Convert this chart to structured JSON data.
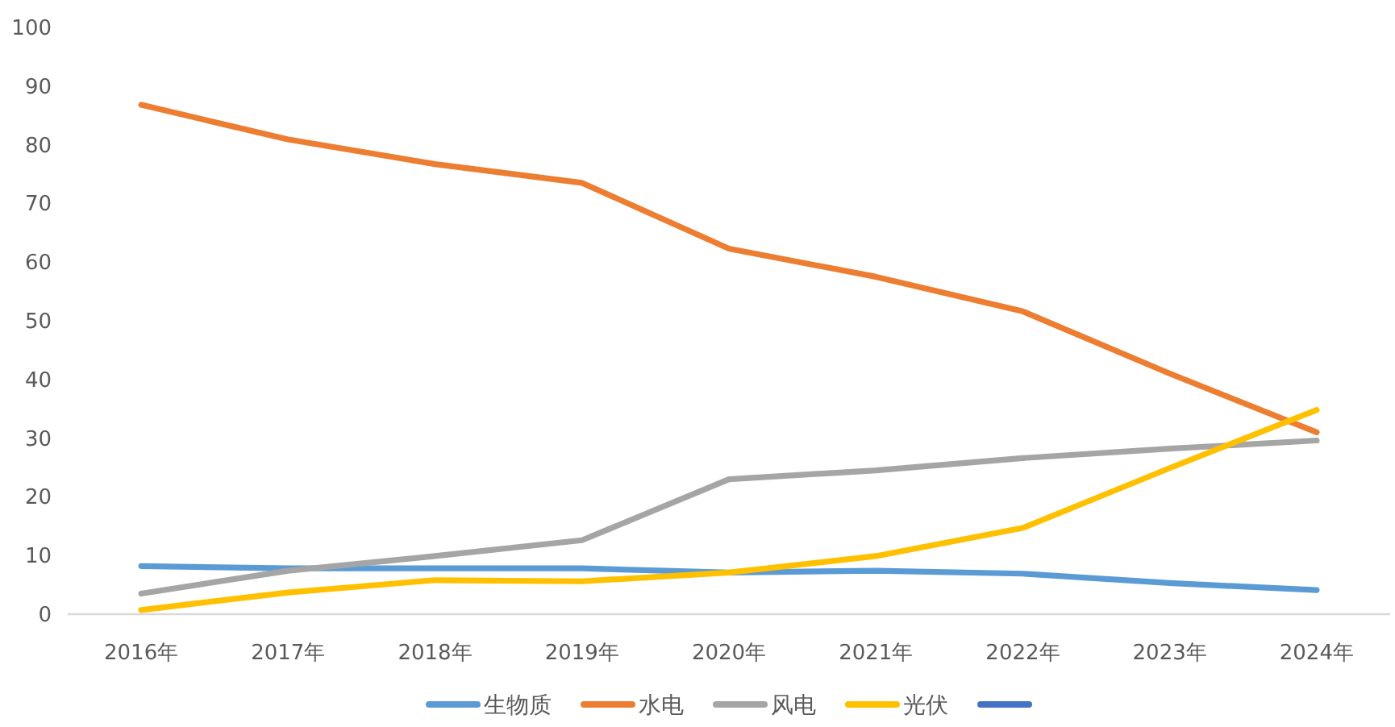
{
  "chart_data": {
    "type": "line",
    "categories": [
      "2016年",
      "2017年",
      "2018年",
      "2019年",
      "2020年",
      "2021年",
      "2022年",
      "2023年",
      "2024年"
    ],
    "ylim": [
      0,
      100
    ],
    "yticks": [
      0,
      10,
      20,
      30,
      40,
      50,
      60,
      70,
      80,
      90,
      100
    ],
    "legend": "bottom",
    "series": [
      {
        "name": "生物质",
        "color": "#5b9bd5",
        "values": [
          8.2,
          7.8,
          7.8,
          7.8,
          7.1,
          7.4,
          6.9,
          5.3,
          4.1
        ]
      },
      {
        "name": "水电",
        "color": "#ed7d31",
        "values": [
          86.8,
          80.9,
          76.7,
          73.5,
          62.3,
          57.5,
          51.6,
          41.0,
          31.0
        ]
      },
      {
        "name": "风电",
        "color": "#a5a5a5",
        "values": [
          3.5,
          7.4,
          9.9,
          12.6,
          23.0,
          24.5,
          26.6,
          28.2,
          29.6
        ]
      },
      {
        "name": "光伏",
        "color": "#ffc000",
        "values": [
          0.7,
          3.7,
          5.8,
          5.6,
          7.1,
          9.9,
          14.7,
          24.9,
          34.8
        ]
      },
      {
        "color": "#4472c4",
        "values": [
          null,
          null,
          null,
          null,
          null,
          null,
          null,
          null,
          null
        ]
      }
    ]
  }
}
